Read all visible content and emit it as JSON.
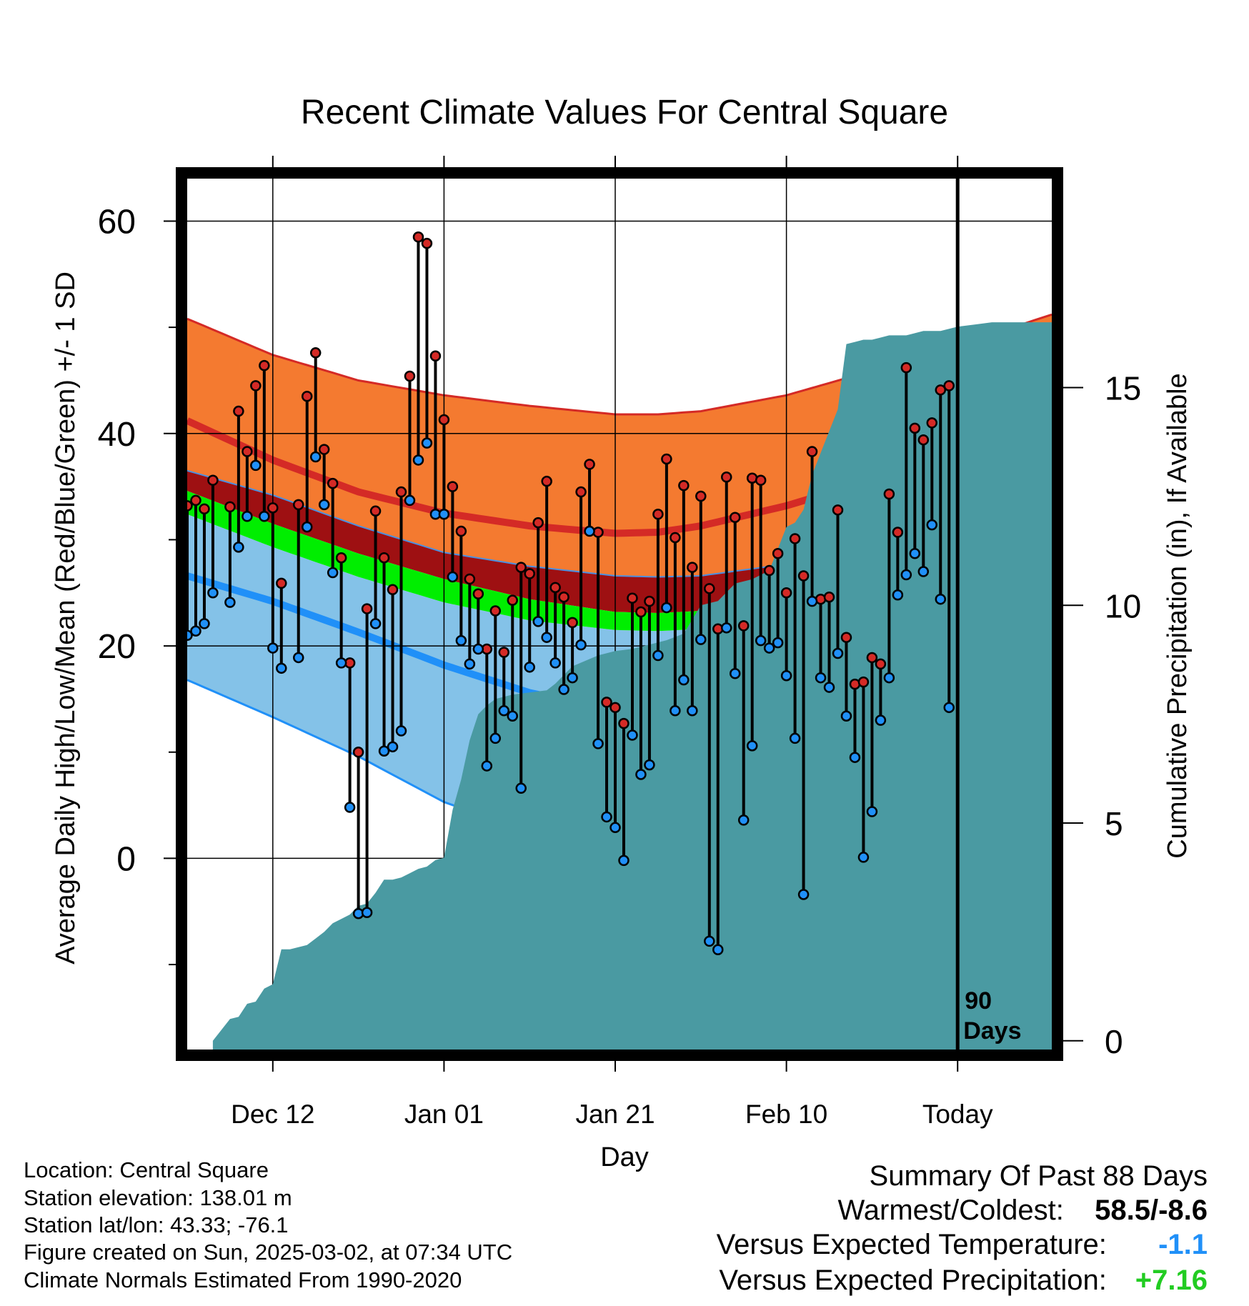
{
  "title": "Recent Climate Values For Central Square",
  "footer": {
    "location": "Location: Central Square",
    "elevation": "Station elevation: 138.01 m",
    "latlon": "Station lat/lon: 43.33; -76.1",
    "created": "Figure created on Sun, 2025-03-02, at 07:34 UTC",
    "normals": "Climate Normals Estimated From 1990-2020"
  },
  "summary": {
    "heading": "Summary Of Past 88 Days",
    "warmest_label": "Warmest/Coldest:",
    "warmest_value": "58.5/-8.6",
    "temp_label": "Versus Expected Temperature:",
    "temp_value": "-1.1",
    "precip_label": "Versus Expected Precipitation:",
    "precip_value": "+7.16"
  },
  "colors": {
    "high_band": "#f47a30",
    "high_line": "#d42a26",
    "high_sd_lower": "#9e1012",
    "mean_band": "#00ee00",
    "low_band": "#84c2e8",
    "low_line": "#2090f8",
    "precip": "#4a9aa2",
    "high_dot": "#d42a26",
    "low_dot": "#2090f8",
    "temp_value": "#2090f8",
    "precip_value": "#22cc22"
  },
  "chart_data": {
    "type": "line",
    "title": "Recent Climate Values For Central Square",
    "xlabel": "Day",
    "ylabel": "Average Daily High/Low/Mean (Red/Blue/Green) +/- 1 SD",
    "y2label": "Cumulative Precipitation (in), If Available",
    "xlim": [
      0,
      101
    ],
    "ylim": [
      -18,
      64
    ],
    "y2lim": [
      -0.2,
      19.8
    ],
    "x_ticks": [
      {
        "x": 10,
        "label": "Dec 12"
      },
      {
        "x": 30,
        "label": "Jan 01"
      },
      {
        "x": 50,
        "label": "Jan 21"
      },
      {
        "x": 70,
        "label": "Feb 10"
      },
      {
        "x": 90,
        "label": "Today"
      }
    ],
    "y_ticks": [
      0,
      20,
      40,
      60
    ],
    "y_minor_ticks": [
      -10,
      10,
      30,
      50
    ],
    "y2_ticks": [
      0,
      5,
      10,
      15
    ],
    "today_x": 90,
    "today_label": [
      "90",
      "Days"
    ],
    "normals": {
      "x": [
        0,
        10,
        20,
        30,
        40,
        50,
        55,
        60,
        70,
        80,
        90,
        101
      ],
      "high_plus_sd": [
        50.8,
        47.4,
        45.0,
        43.6,
        42.6,
        41.8,
        41.8,
        42.1,
        43.6,
        45.9,
        48.3,
        51.2
      ],
      "high_mean": [
        41.2,
        37.5,
        34.5,
        32.5,
        31.3,
        30.6,
        30.7,
        31.3,
        33.2,
        35.6,
        37.7,
        40.3
      ],
      "high_minus_sd": [
        36.5,
        34.2,
        31.3,
        28.8,
        27.5,
        26.6,
        26.5,
        26.6,
        27.7,
        29.5,
        31.2,
        33.4
      ],
      "mean_upper": [
        34.6,
        31.5,
        28.7,
        26.3,
        24.4,
        23.2,
        23.1,
        23.3,
        24.6,
        26.4,
        28.9,
        31.9
      ],
      "mean_lower": [
        32.4,
        29.3,
        26.5,
        24.1,
        22.4,
        21.5,
        21.4,
        21.6,
        22.8,
        24.6,
        27.1,
        29.9
      ],
      "low_mean": [
        26.6,
        24.2,
        21.3,
        18.2,
        15.6,
        13.9,
        13.7,
        14.2,
        16.0,
        18.2,
        20.1,
        22.6
      ],
      "low_minus_sd": [
        16.8,
        13.3,
        9.6,
        5.3,
        2.5,
        1.1,
        1.1,
        1.5,
        3.3,
        5.8,
        8.0,
        11.6
      ]
    },
    "series": [
      {
        "name": "High",
        "values": [
          33.2,
          33.7,
          32.9,
          35.6,
          null,
          33.1,
          42.1,
          38.3,
          44.5,
          46.4,
          33.0,
          25.9,
          null,
          33.3,
          43.5,
          47.6,
          38.5,
          35.3,
          28.3,
          18.4,
          10.0,
          23.5,
          32.7,
          28.3,
          25.3,
          34.5,
          45.4,
          58.5,
          57.9,
          47.3,
          41.3,
          35.0,
          30.8,
          26.3,
          24.9,
          19.7,
          23.3,
          19.4,
          24.3,
          27.4,
          26.8,
          31.6,
          35.5,
          25.5,
          24.6,
          22.2,
          34.5,
          37.1,
          30.7,
          14.7,
          14.2,
          12.7,
          24.5,
          23.2,
          24.2,
          32.4,
          37.6,
          30.2,
          35.1,
          27.4,
          34.1,
          25.4,
          21.6,
          35.9,
          32.1,
          21.9,
          35.8,
          35.6,
          27.1,
          28.7,
          25.0,
          30.1,
          26.6,
          38.3,
          24.4,
          24.6,
          32.8,
          20.8,
          16.4,
          16.6,
          18.9,
          18.3,
          34.3,
          30.7,
          46.2,
          40.5,
          39.4,
          41.0,
          44.1,
          44.5
        ]
      },
      {
        "name": "Low",
        "values": [
          21.0,
          21.4,
          22.1,
          25.0,
          null,
          24.1,
          29.3,
          32.2,
          37.0,
          32.2,
          19.8,
          17.9,
          null,
          18.9,
          31.2,
          37.8,
          33.3,
          26.9,
          18.4,
          4.8,
          -5.2,
          -5.1,
          22.1,
          10.1,
          10.5,
          12.0,
          33.7,
          37.5,
          39.1,
          32.4,
          32.4,
          26.5,
          20.5,
          18.3,
          19.7,
          8.7,
          11.3,
          13.9,
          13.4,
          6.6,
          18.0,
          22.3,
          20.8,
          18.4,
          15.9,
          17.0,
          20.1,
          30.8,
          10.8,
          3.9,
          2.9,
          -0.2,
          11.6,
          7.9,
          8.8,
          19.1,
          23.6,
          13.9,
          16.8,
          13.9,
          20.6,
          -7.8,
          -8.6,
          21.7,
          17.4,
          3.6,
          10.6,
          20.5,
          19.8,
          20.3,
          17.2,
          11.3,
          -3.4,
          24.2,
          17.0,
          16.1,
          19.3,
          13.4,
          9.5,
          0.1,
          4.4,
          13.0,
          17.0,
          24.8,
          26.7,
          28.7,
          27.0,
          31.4,
          24.4,
          14.2
        ]
      },
      {
        "name": "Cumulative Precipitation",
        "x": [
          3,
          5,
          6,
          7,
          8,
          9,
          10,
          11,
          12,
          13,
          14,
          15,
          16,
          17,
          18,
          19,
          20,
          21,
          22,
          23,
          24,
          25,
          26,
          27,
          28,
          29,
          30,
          31,
          32,
          33,
          34,
          35,
          36,
          37,
          38,
          40,
          42,
          43,
          45,
          48,
          50,
          52,
          54,
          56,
          58,
          60,
          62,
          64,
          66,
          68,
          70,
          71,
          72,
          73,
          74,
          75,
          76,
          77,
          78,
          79,
          80,
          81,
          82,
          84,
          86,
          88,
          90,
          92,
          94,
          96,
          98,
          101
        ],
        "values": [
          0.0,
          0.5,
          0.55,
          0.85,
          0.9,
          1.2,
          1.3,
          2.1,
          2.1,
          2.15,
          2.2,
          2.35,
          2.5,
          2.7,
          2.8,
          2.9,
          3.1,
          3.15,
          3.4,
          3.7,
          3.7,
          3.75,
          3.85,
          3.95,
          4.0,
          4.15,
          4.2,
          5.3,
          6.0,
          6.9,
          7.5,
          7.7,
          7.85,
          7.9,
          7.95,
          8.0,
          8.05,
          8.2,
          8.6,
          8.85,
          8.95,
          9.0,
          9.1,
          9.2,
          9.35,
          10.0,
          10.1,
          10.5,
          10.6,
          10.8,
          11.8,
          11.9,
          12.2,
          13.0,
          13.5,
          14.0,
          14.5,
          16.0,
          16.05,
          16.1,
          16.1,
          16.15,
          16.2,
          16.2,
          16.3,
          16.3,
          16.4,
          16.45,
          16.5,
          16.5,
          16.5,
          16.5
        ]
      }
    ]
  }
}
